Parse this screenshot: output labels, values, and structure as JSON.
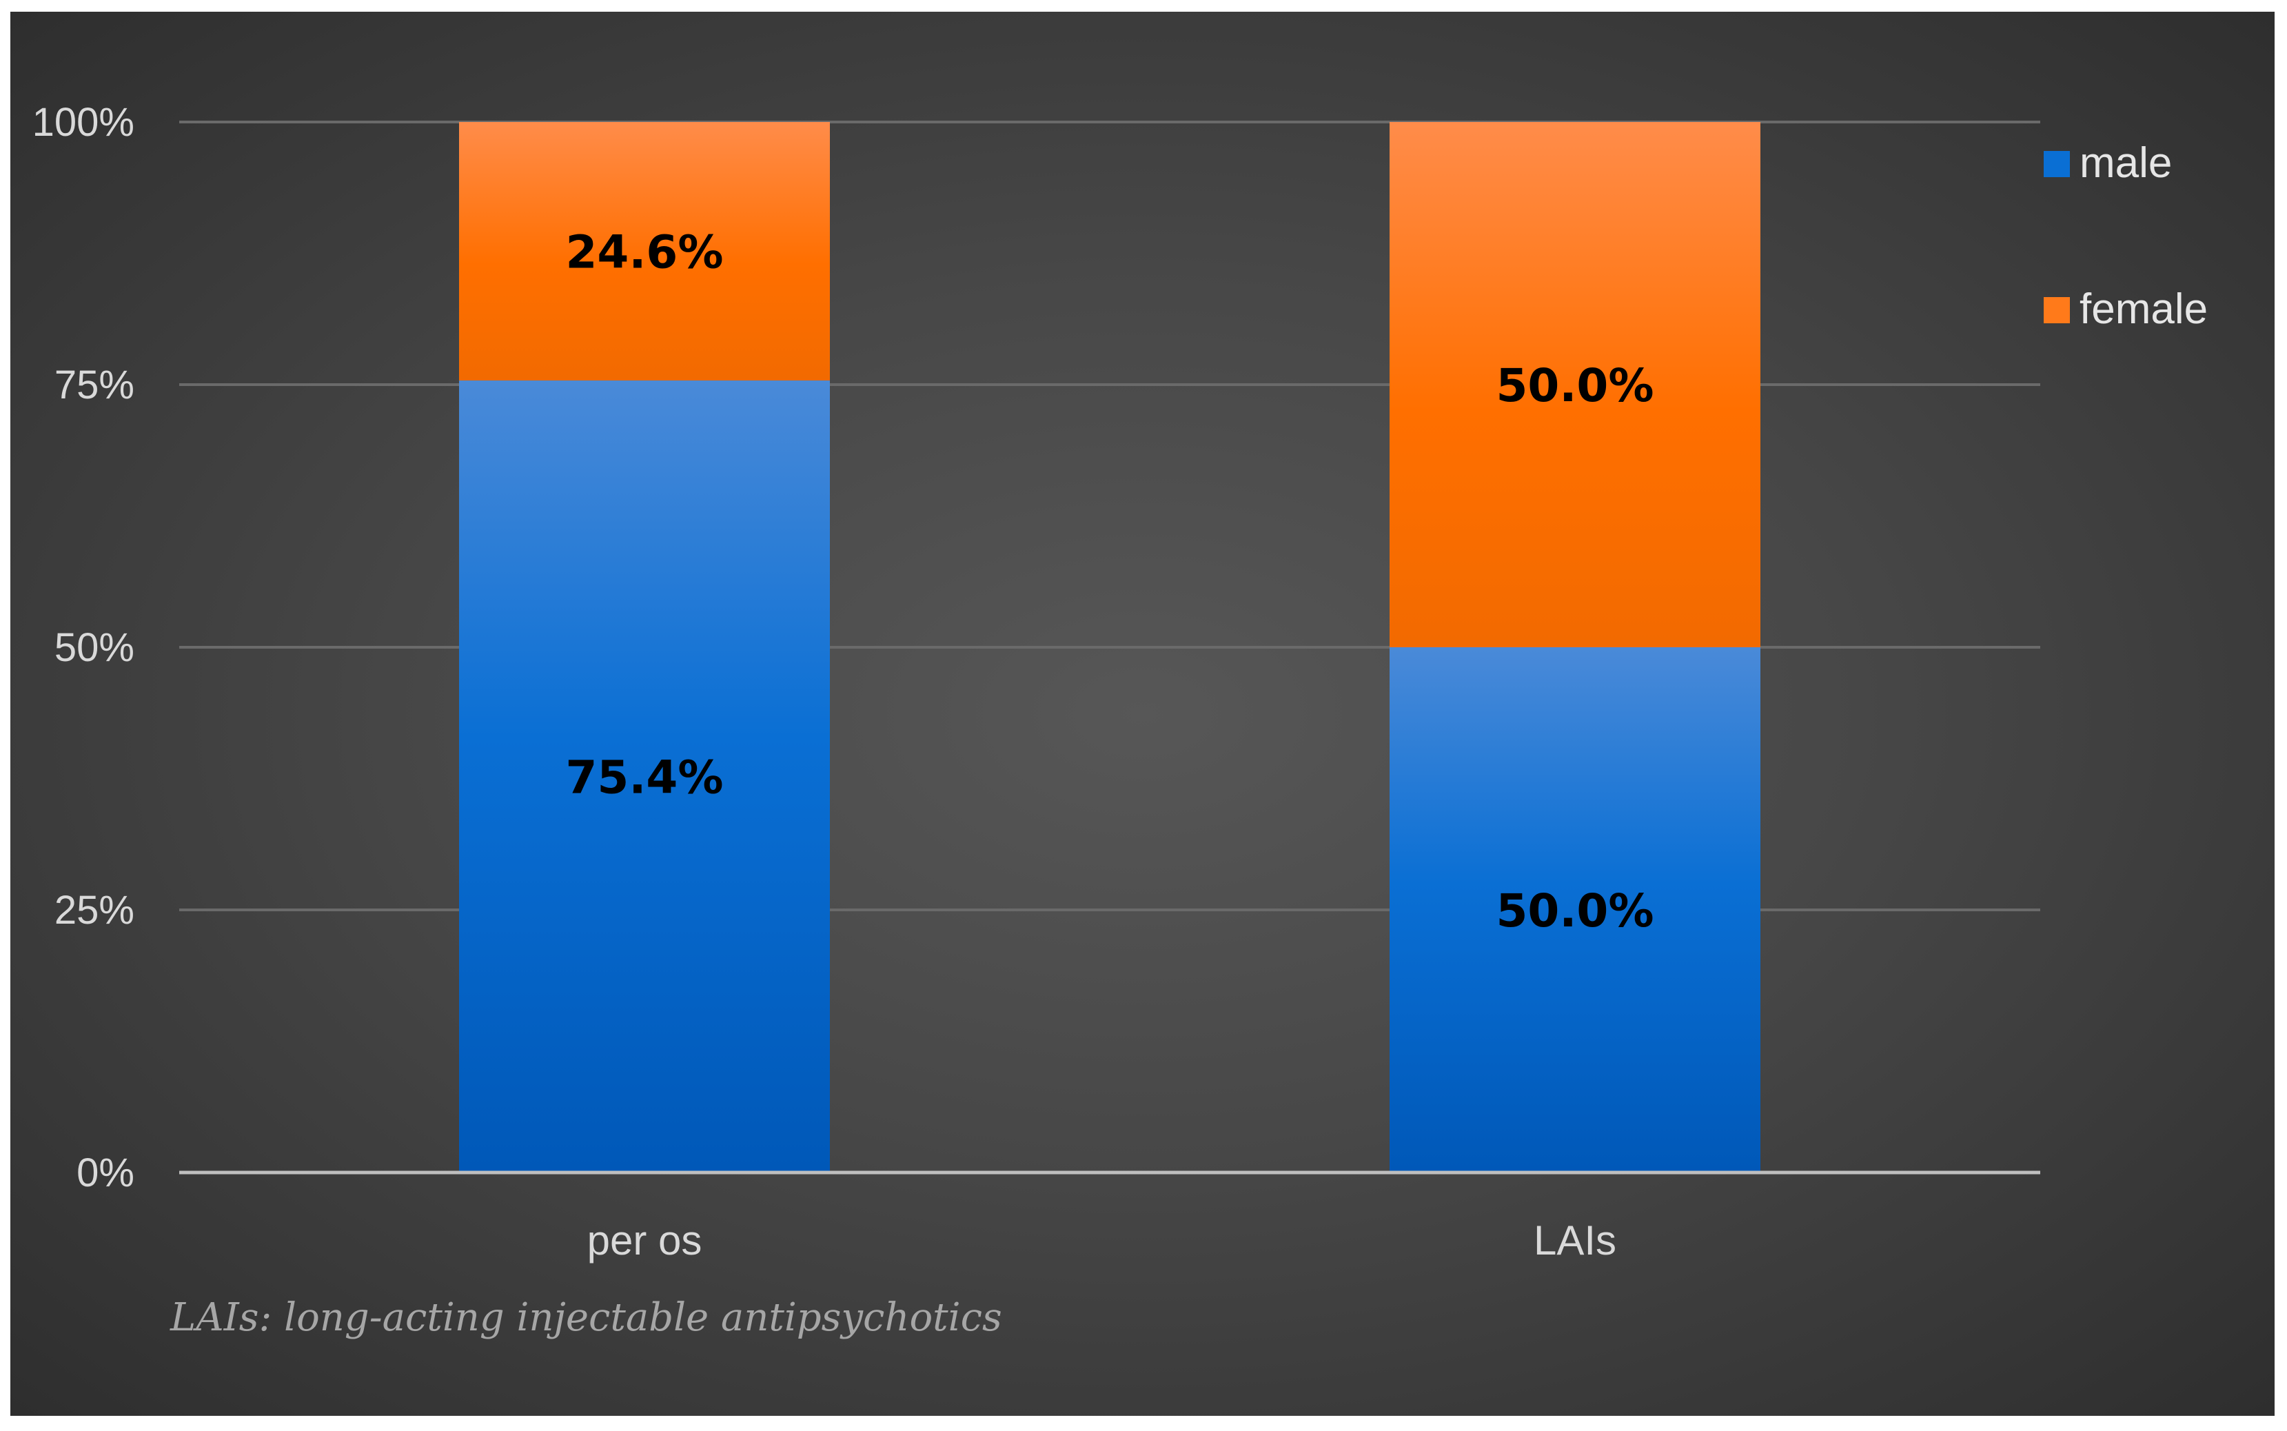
{
  "chart_data": {
    "type": "bar",
    "stacked": true,
    "categories": [
      "per os",
      "LAIs"
    ],
    "series": [
      {
        "name": "male",
        "values": [
          75.4,
          50.0
        ],
        "labels": [
          "75.4%",
          "50.0%"
        ],
        "color": "#0a6fd4"
      },
      {
        "name": "female",
        "values": [
          24.6,
          50.0
        ],
        "labels": [
          "24.6%",
          "50.0%"
        ],
        "color": "#ff7a1a"
      }
    ],
    "y_ticks": [
      "0%",
      "25%",
      "50%",
      "75%",
      "100%"
    ],
    "ylim": [
      0,
      100
    ],
    "grid": true,
    "legend_position": "top-right",
    "footnote": "LAIs:  long-acting injectable antipsychotics"
  },
  "colors": {
    "background": "#474747",
    "gridline": "#6a6a6a",
    "axis": "#bfbfbf"
  }
}
